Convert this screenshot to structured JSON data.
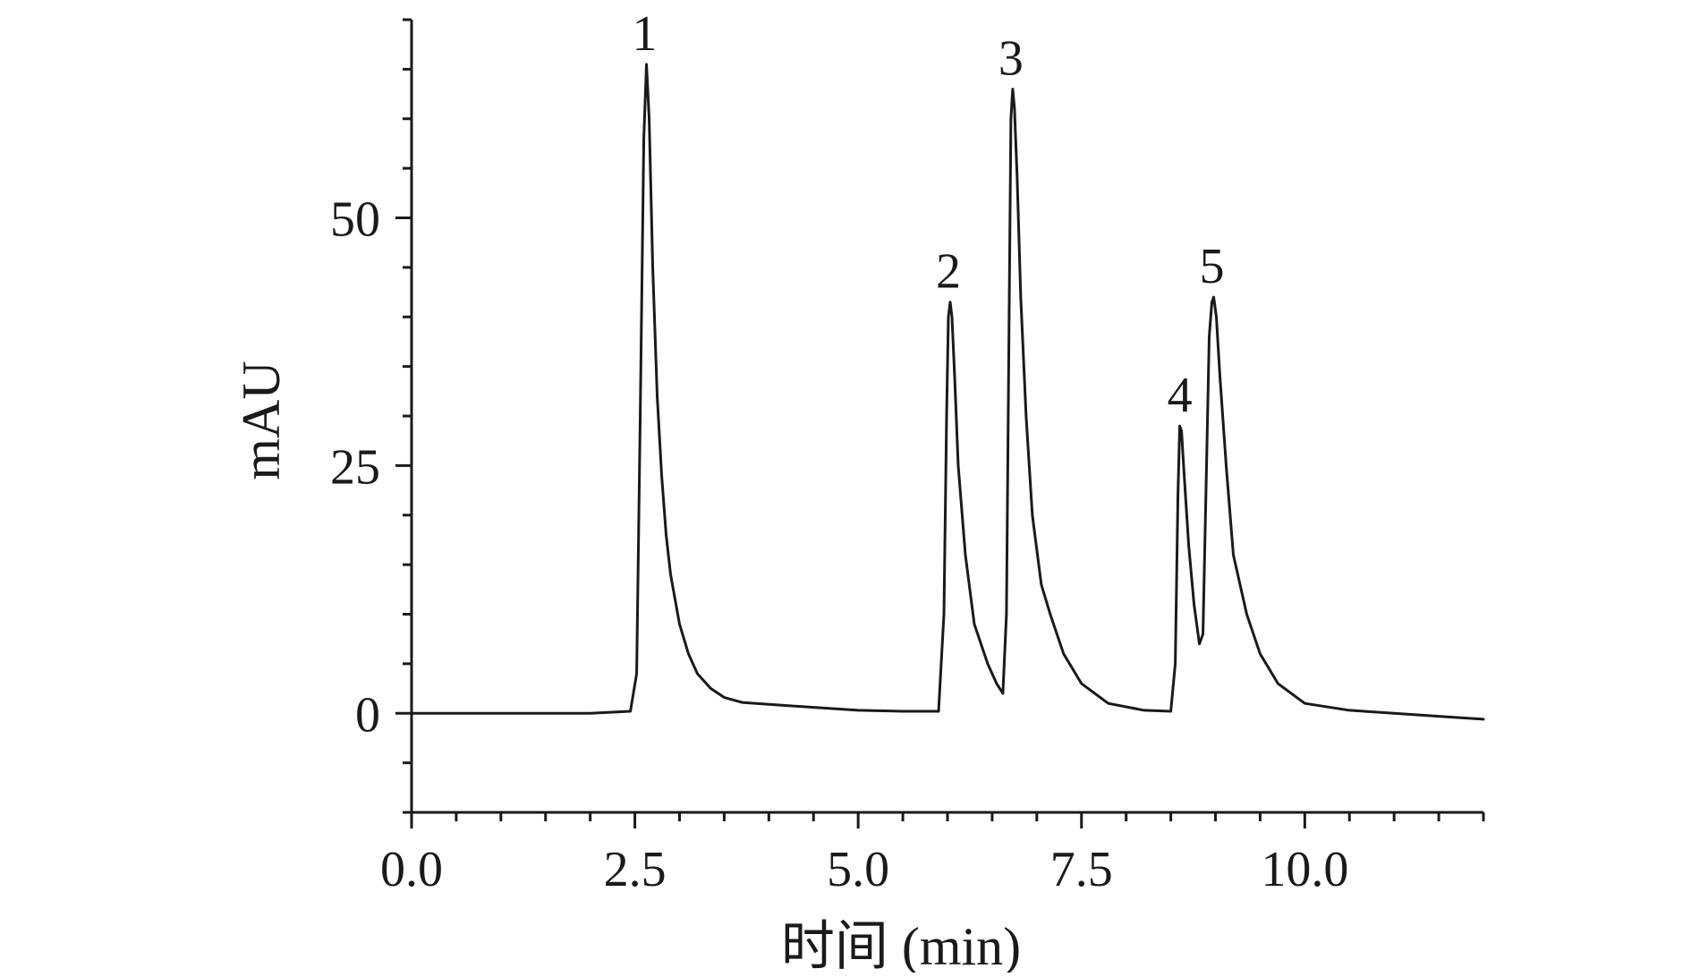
{
  "chart_data": {
    "type": "line",
    "xlabel": "时间 (min)",
    "ylabel": "mAU",
    "xlim": [
      0,
      12
    ],
    "ylim": [
      -10,
      70
    ],
    "x_ticks": [
      0.0,
      2.5,
      5.0,
      7.5,
      10.0
    ],
    "x_tick_labels": [
      "0.0",
      "2.5",
      "5.0",
      "7.5",
      "10.0"
    ],
    "x_minor_step": 0.5,
    "y_ticks": [
      0,
      25,
      50
    ],
    "y_tick_labels": [
      "0",
      "25",
      "50"
    ],
    "y_minor_step": 5,
    "grid": false,
    "series_color": "#1a1a1a",
    "peaks": [
      {
        "label": "1",
        "x": 2.63,
        "y": 65.5
      },
      {
        "label": "2",
        "x": 6.03,
        "y": 41.5
      },
      {
        "label": "3",
        "x": 6.73,
        "y": 63.0
      },
      {
        "label": "4",
        "x": 8.62,
        "y": 29.0
      },
      {
        "label": "5",
        "x": 8.98,
        "y": 42.0
      }
    ],
    "series": [
      {
        "x": [
          0.0,
          1.0,
          2.0,
          2.45,
          2.52,
          2.56,
          2.6,
          2.63,
          2.66,
          2.7,
          2.75,
          2.8,
          2.85,
          2.9,
          3.0,
          3.1,
          3.2,
          3.35,
          3.5,
          3.7,
          4.0,
          4.5,
          5.0,
          5.5,
          5.9,
          5.96,
          5.99,
          6.01,
          6.03,
          6.05,
          6.08,
          6.12,
          6.2,
          6.3,
          6.45,
          6.55,
          6.62,
          6.66,
          6.69,
          6.71,
          6.73,
          6.75,
          6.78,
          6.82,
          6.88,
          6.95,
          7.05,
          7.15,
          7.3,
          7.5,
          7.8,
          8.2,
          8.5,
          8.55,
          8.58,
          8.6,
          8.62,
          8.65,
          8.7,
          8.76,
          8.82,
          8.86,
          8.9,
          8.93,
          8.96,
          8.98,
          9.01,
          9.05,
          9.12,
          9.2,
          9.35,
          9.5,
          9.7,
          10.0,
          10.5,
          11.0,
          11.5,
          12.0
        ],
        "y": [
          0.0,
          0.0,
          0.0,
          0.2,
          4.0,
          30.0,
          58.0,
          65.5,
          60.0,
          45.0,
          32.0,
          24.0,
          18.0,
          14.0,
          9.0,
          6.0,
          4.0,
          2.5,
          1.6,
          1.1,
          0.9,
          0.6,
          0.3,
          0.2,
          0.2,
          10.0,
          30.0,
          40.0,
          41.5,
          40.0,
          34.0,
          25.0,
          16.0,
          9.0,
          5.0,
          3.0,
          2.0,
          10.0,
          40.0,
          60.0,
          63.0,
          61.0,
          54.0,
          42.0,
          30.0,
          20.0,
          13.0,
          10.0,
          6.0,
          3.0,
          1.0,
          0.3,
          0.2,
          5.0,
          22.0,
          29.0,
          28.5,
          24.0,
          17.0,
          11.0,
          7.0,
          8.0,
          25.0,
          38.0,
          41.5,
          42.0,
          40.0,
          34.0,
          25.0,
          16.0,
          10.0,
          6.0,
          3.0,
          1.0,
          0.3,
          0.0,
          -0.3,
          -0.6
        ]
      }
    ]
  }
}
